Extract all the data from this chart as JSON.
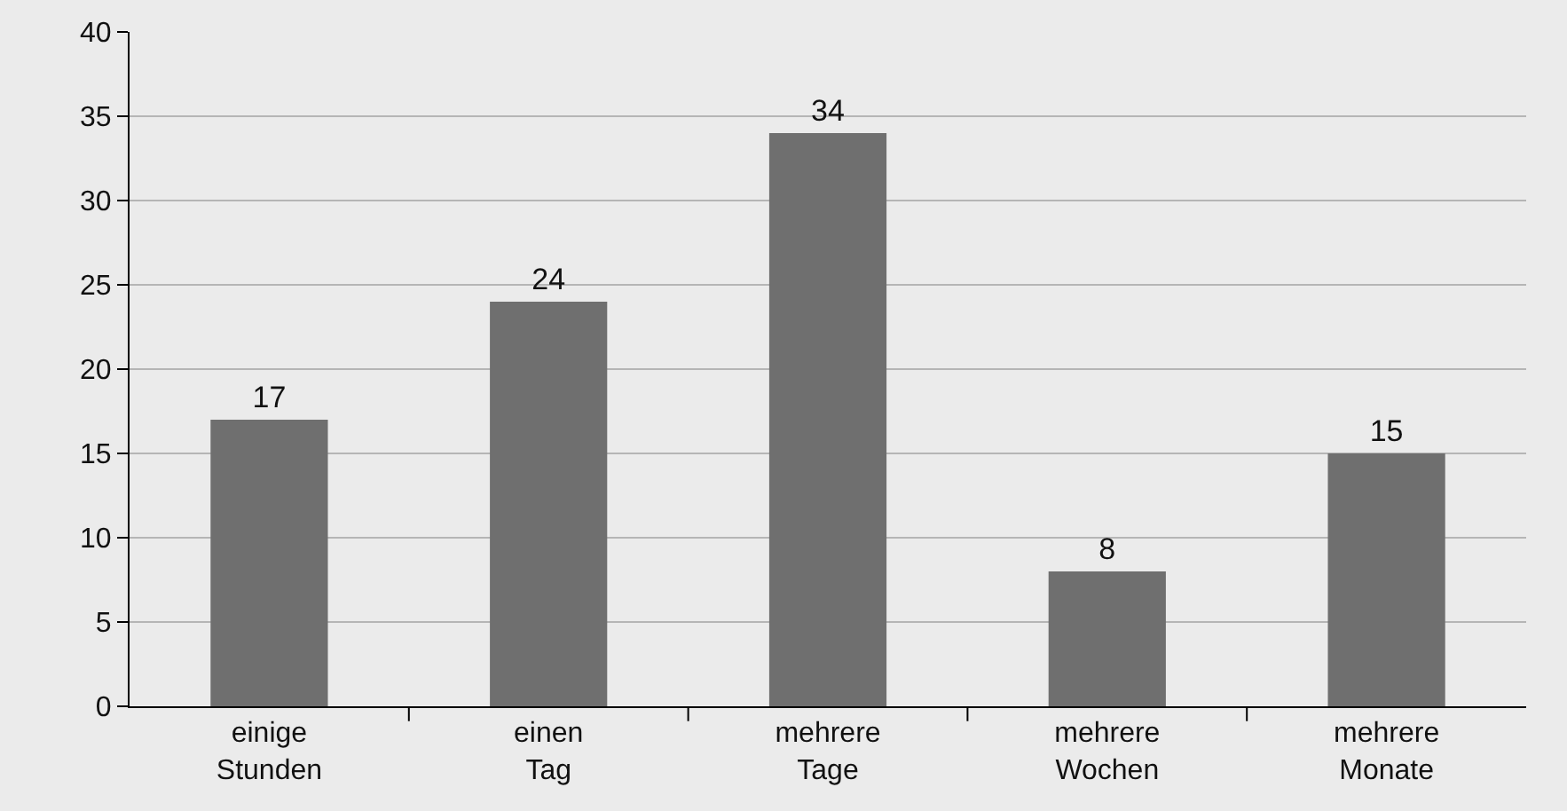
{
  "chart_data": {
    "type": "bar",
    "categories": [
      "einige\nStunden",
      "einen\nTag",
      "mehrere\nTage",
      "mehrere\nWochen",
      "mehrere\nMonate"
    ],
    "values": [
      17,
      24,
      34,
      8,
      15
    ],
    "color": "#6f6f6f",
    "data_labels": true,
    "ylim": [
      0,
      40
    ],
    "yticks": [
      0,
      5,
      10,
      15,
      20,
      25,
      30,
      35,
      40
    ],
    "grid": "y"
  }
}
